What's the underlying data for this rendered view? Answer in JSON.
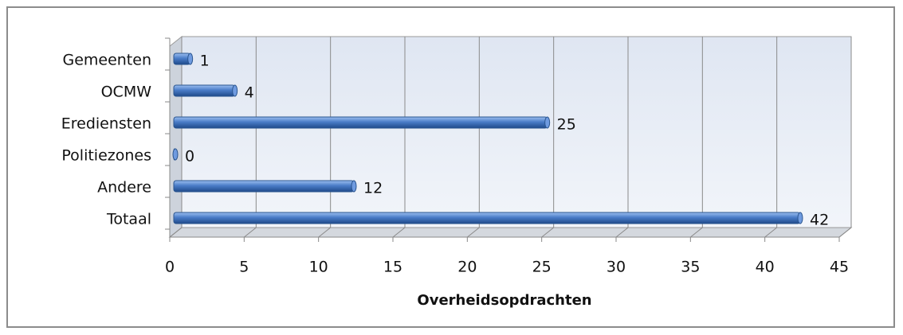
{
  "chart_data": {
    "type": "bar",
    "orientation": "horizontal",
    "x_label": "Overheidsopdrachten",
    "categories": [
      "Gemeenten",
      "OCMW",
      "Erediensten",
      "Politiezones",
      "Andere",
      "Totaal"
    ],
    "values": [
      1,
      4,
      25,
      0,
      12,
      42
    ],
    "color": "#4a7cc7",
    "xlim": [
      0,
      45
    ],
    "xticks": [
      0,
      5,
      10,
      15,
      20,
      25,
      30,
      35,
      40,
      45
    ],
    "grid": true
  }
}
